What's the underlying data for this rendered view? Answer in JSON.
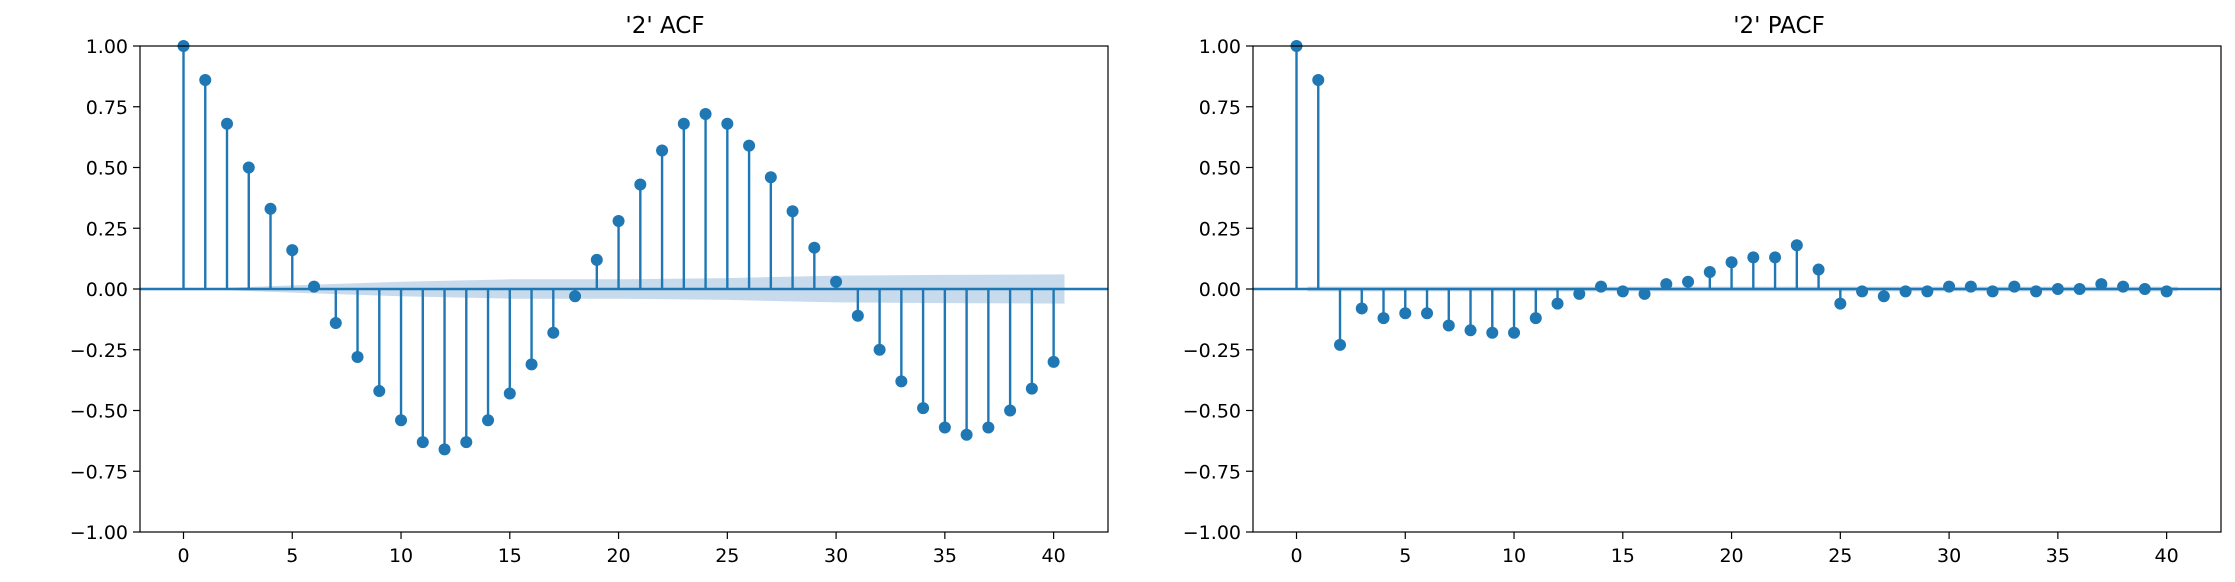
{
  "chart_data": [
    {
      "type": "stem",
      "title": "'2' ACF",
      "xlabel": "",
      "ylabel": "",
      "xlim": [
        -2,
        42.5
      ],
      "ylim": [
        -1.0,
        1.0
      ],
      "xticks": [
        0,
        5,
        10,
        15,
        20,
        25,
        30,
        35,
        40
      ],
      "xtick_labels": [
        "0",
        "5",
        "10",
        "15",
        "20",
        "25",
        "30",
        "35",
        "40"
      ],
      "yticks": [
        1.0,
        0.75,
        0.5,
        0.25,
        0.0,
        -0.25,
        -0.5,
        -0.75,
        -1.0
      ],
      "ytick_labels": [
        "1.00",
        "0.75",
        "0.50",
        "0.25",
        "0.00",
        "−0.25",
        "−0.50",
        "−0.75",
        "−1.00"
      ],
      "grid": false,
      "x": [
        0,
        1,
        2,
        3,
        4,
        5,
        6,
        7,
        8,
        9,
        10,
        11,
        12,
        13,
        14,
        15,
        16,
        17,
        18,
        19,
        20,
        21,
        22,
        23,
        24,
        25,
        26,
        27,
        28,
        29,
        30,
        31,
        32,
        33,
        34,
        35,
        36,
        37,
        38,
        39,
        40
      ],
      "values": [
        1.0,
        0.86,
        0.68,
        0.5,
        0.33,
        0.16,
        0.01,
        -0.14,
        -0.28,
        -0.42,
        -0.54,
        -0.63,
        -0.66,
        -0.63,
        -0.54,
        -0.43,
        -0.31,
        -0.18,
        -0.03,
        0.12,
        0.28,
        0.43,
        0.57,
        0.68,
        0.72,
        0.68,
        0.59,
        0.46,
        0.32,
        0.17,
        0.03,
        -0.11,
        -0.25,
        -0.38,
        -0.49,
        -0.57,
        -0.6,
        -0.57,
        -0.5,
        -0.41,
        -0.3
      ],
      "confidence_band": {
        "x": [
          0.5,
          5,
          10,
          15,
          20,
          25,
          30,
          35,
          40.5
        ],
        "upper": [
          0.0,
          0.015,
          0.03,
          0.04,
          0.04,
          0.045,
          0.055,
          0.058,
          0.06
        ],
        "lower": [
          0.0,
          -0.015,
          -0.03,
          -0.04,
          -0.04,
          -0.045,
          -0.055,
          -0.058,
          -0.06
        ]
      },
      "colors": {
        "stem": "#1f77b4",
        "band": "#c5d9ec"
      }
    },
    {
      "type": "stem",
      "title": "'2' PACF",
      "xlabel": "",
      "ylabel": "",
      "xlim": [
        -2,
        42.5
      ],
      "ylim": [
        -1.0,
        1.0
      ],
      "xticks": [
        0,
        5,
        10,
        15,
        20,
        25,
        30,
        35,
        40
      ],
      "xtick_labels": [
        "0",
        "5",
        "10",
        "15",
        "20",
        "25",
        "30",
        "35",
        "40"
      ],
      "yticks": [
        1.0,
        0.75,
        0.5,
        0.25,
        0.0,
        -0.25,
        -0.5,
        -0.75,
        -1.0
      ],
      "ytick_labels": [
        "1.00",
        "0.75",
        "0.50",
        "0.25",
        "0.00",
        "−0.25",
        "−0.50",
        "−0.75",
        "−1.00"
      ],
      "grid": false,
      "x": [
        0,
        1,
        2,
        3,
        4,
        5,
        6,
        7,
        8,
        9,
        10,
        11,
        12,
        13,
        14,
        15,
        16,
        17,
        18,
        19,
        20,
        21,
        22,
        23,
        24,
        25,
        26,
        27,
        28,
        29,
        30,
        31,
        32,
        33,
        34,
        35,
        36,
        37,
        38,
        39,
        40
      ],
      "values": [
        1.0,
        0.86,
        -0.23,
        -0.08,
        -0.12,
        -0.1,
        -0.1,
        -0.15,
        -0.17,
        -0.18,
        -0.18,
        -0.12,
        -0.06,
        -0.02,
        0.01,
        -0.01,
        -0.02,
        0.02,
        0.03,
        0.07,
        0.11,
        0.13,
        0.13,
        0.18,
        0.08,
        -0.06,
        -0.01,
        -0.03,
        -0.01,
        -0.01,
        0.01,
        0.01,
        -0.01,
        0.01,
        -0.01,
        0.0,
        0.0,
        0.02,
        0.01,
        0.0,
        -0.01
      ],
      "confidence_band": {
        "x": [
          0.5,
          40.5
        ],
        "upper": [
          0.01,
          0.01
        ],
        "lower": [
          -0.01,
          -0.01
        ]
      },
      "colors": {
        "stem": "#1f77b4",
        "band": "#c5d9ec"
      }
    }
  ]
}
